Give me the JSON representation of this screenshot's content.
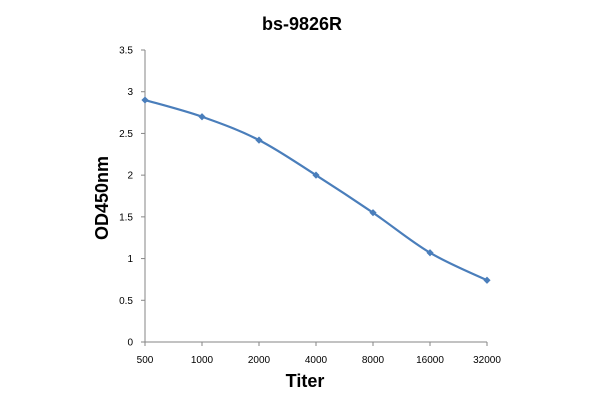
{
  "chart_data": {
    "type": "line",
    "title": "bs-9826R",
    "xlabel": "Titer",
    "ylabel": "OD450nm",
    "categories": [
      "500",
      "1000",
      "2000",
      "4000",
      "8000",
      "16000",
      "32000"
    ],
    "series": [
      {
        "values": [
          2.9,
          2.7,
          2.42,
          2.0,
          1.55,
          1.07,
          0.74
        ],
        "color": "#4a7ebb"
      }
    ],
    "ylim": [
      0,
      3.5
    ],
    "yticks": [
      "0",
      "0.5",
      "1",
      "1.5",
      "2",
      "2.5",
      "3",
      "3.5"
    ],
    "grid": false,
    "marker": "diamond",
    "smooth": true
  }
}
